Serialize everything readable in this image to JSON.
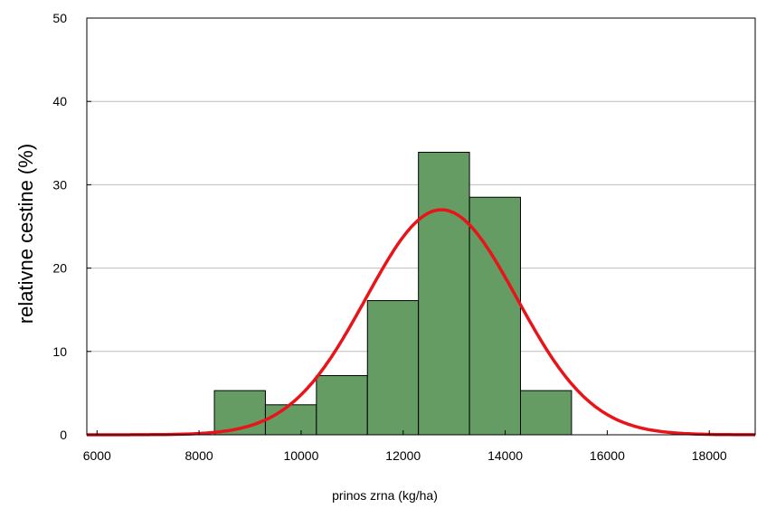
{
  "chart_data": {
    "type": "bar",
    "xlabel": "prinos zrna (kg/ha)",
    "ylabel": "relativne cestine (%)",
    "xlim": [
      5800,
      18900
    ],
    "ylim": [
      0,
      50
    ],
    "grid": true,
    "x_ticks": [
      6000,
      8000,
      10000,
      12000,
      14000,
      16000,
      18000
    ],
    "y_ticks": [
      0,
      10,
      20,
      30,
      40,
      50
    ],
    "bins": [
      {
        "start": 8300,
        "end": 9300,
        "value": 5.3
      },
      {
        "start": 9300,
        "end": 10300,
        "value": 3.6
      },
      {
        "start": 10300,
        "end": 11300,
        "value": 7.1
      },
      {
        "start": 11300,
        "end": 12300,
        "value": 16.1
      },
      {
        "start": 12300,
        "end": 13300,
        "value": 33.9
      },
      {
        "start": 13300,
        "end": 14300,
        "value": 28.5
      },
      {
        "start": 14300,
        "end": 15300,
        "value": 5.3
      }
    ],
    "normal_curve": {
      "mean": 12750,
      "sd": 1480,
      "peak": 27.0
    },
    "colors": {
      "bar_fill": "#659c64",
      "bar_stroke": "#000000",
      "curve": "#e8141a",
      "grid": "#bdbdbd"
    }
  }
}
